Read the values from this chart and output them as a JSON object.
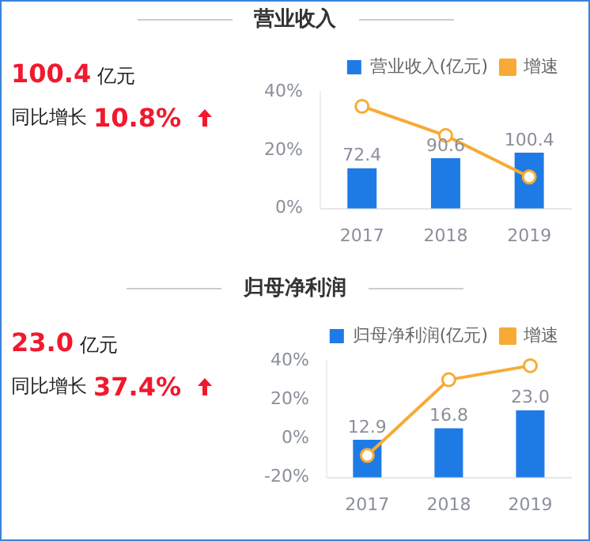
{
  "chart_data": [
    {
      "type": "bar",
      "title": "营业收入",
      "annotations": [
        "100.4",
        "亿元",
        "同比增长",
        "10.8%"
      ],
      "categories": [
        "2017",
        "2018",
        "2019"
      ],
      "series": [
        {
          "name": "营业收入(亿元)",
          "axis": "y2",
          "color": "#1e7be6",
          "values": [
            72.4,
            90.6,
            100.4
          ],
          "value_labels": [
            "72.4",
            "90.6",
            "100.4"
          ]
        },
        {
          "name": "增速",
          "type": "line",
          "color": "#f7ab34",
          "values": [
            35,
            25,
            10.8
          ],
          "marker": "circle"
        }
      ],
      "ylim": [
        0,
        40
      ],
      "yticks": [
        {
          "value": 0,
          "label": "0%"
        },
        {
          "value": 20,
          "label": "20%"
        },
        {
          "value": 40,
          "label": "40%"
        }
      ],
      "y2lim": [
        0,
        210
      ],
      "legend": "top right"
    },
    {
      "type": "bar",
      "title": "归母净利润",
      "annotations": [
        "23.0",
        "亿元",
        "同比增长",
        "37.4%"
      ],
      "categories": [
        "2017",
        "2018",
        "2019"
      ],
      "series": [
        {
          "name": "归母净利润(亿元)",
          "axis": "y2",
          "color": "#1e7be6",
          "values": [
            12.9,
            16.8,
            23.0
          ],
          "value_labels": [
            "12.9",
            "16.8",
            "23.0"
          ]
        },
        {
          "name": "增速",
          "type": "line",
          "color": "#f7ab34",
          "values": [
            -8.7,
            30.2,
            37.4
          ],
          "marker": "circle"
        }
      ],
      "ylim": [
        -20,
        40
      ],
      "yticks": [
        {
          "value": -20,
          "label": "-20%"
        },
        {
          "value": 0,
          "label": "0%"
        },
        {
          "value": 20,
          "label": "20%"
        },
        {
          "value": 40,
          "label": "40%"
        }
      ],
      "y2lim": [
        0,
        40
      ],
      "legend": "top right"
    }
  ]
}
